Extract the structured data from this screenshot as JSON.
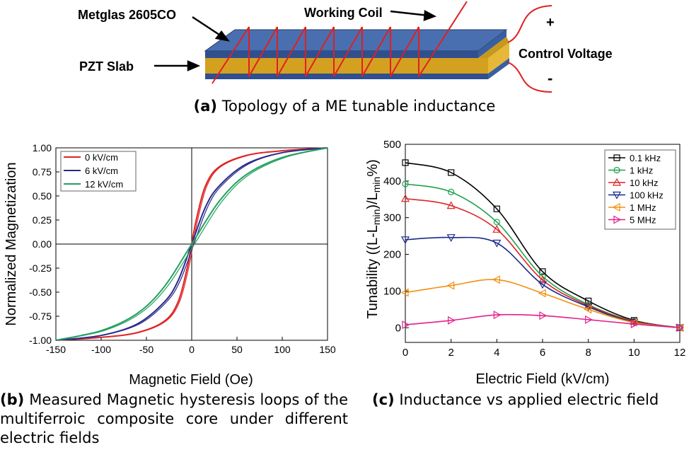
{
  "figure_a": {
    "labels": {
      "metglas": "Metglas 2605CO",
      "coil": "Working Coil",
      "pzt": "PZT Slab",
      "control": "Control Voltage",
      "plus": "+",
      "minus": "-"
    },
    "caption_tag": "(a)",
    "caption_text": "Topology of a ME tunable inductance",
    "colors": {
      "metglas": "#2f4f8f",
      "pzt": "#d4a020",
      "coil": "#e02020"
    }
  },
  "figure_b": {
    "caption_tag": "(b)",
    "caption_text_line1": "Measured Magnetic hysteresis loops of the",
    "caption_text_line2": "multiferroic composite core under different",
    "caption_text_line3": "electric fields"
  },
  "figure_c": {
    "caption_tag": "(c)",
    "caption_text": "Inductance vs applied electric field"
  },
  "chart_data": [
    {
      "type": "line",
      "xlabel": "Magnetic Field (Oe)",
      "ylabel": "Normalized Magnetization",
      "xlim": [
        -150,
        150
      ],
      "ylim": [
        -1.0,
        1.0
      ],
      "xticks": [
        "-150",
        "-100",
        "-50",
        "0",
        "50",
        "100",
        "150"
      ],
      "yticks": [
        "1.00",
        "0.75",
        "0.50",
        "0.25",
        "0.00",
        "-0.25",
        "-0.50",
        "-0.75",
        "-1.00"
      ],
      "legend_position": "top-left",
      "series": [
        {
          "name": "0 kV/cm",
          "color": "#e02424",
          "x": [
            -150,
            -100,
            -60,
            -30,
            -15,
            -5,
            0,
            5,
            15,
            30,
            60,
            100,
            150
          ],
          "y": [
            -1.0,
            -0.97,
            -0.92,
            -0.8,
            -0.6,
            -0.25,
            0.0,
            0.25,
            0.6,
            0.8,
            0.92,
            0.97,
            1.0
          ]
        },
        {
          "name": "6 kV/cm",
          "color": "#2a2a8c",
          "x": [
            -150,
            -100,
            -60,
            -30,
            -15,
            0,
            15,
            30,
            60,
            100,
            150
          ],
          "y": [
            -1.0,
            -0.95,
            -0.83,
            -0.6,
            -0.38,
            0.0,
            0.38,
            0.6,
            0.83,
            0.95,
            1.0
          ]
        },
        {
          "name": "12 kV/cm",
          "color": "#22a060",
          "x": [
            -150,
            -100,
            -60,
            -30,
            0,
            30,
            60,
            100,
            150
          ],
          "y": [
            -1.0,
            -0.9,
            -0.72,
            -0.44,
            0.0,
            0.44,
            0.72,
            0.9,
            1.0
          ]
        }
      ]
    },
    {
      "type": "line",
      "xlabel": "Electric Field (kV/cm)",
      "ylabel": "Tunability ((L-L",
      "ylabel_sub1": "min",
      "ylabel_mid": ")/L",
      "ylabel_sub2": "min",
      "ylabel_end": "%)",
      "xlim": [
        0,
        12
      ],
      "ylim": [
        -40,
        500
      ],
      "xticks": [
        "0",
        "2",
        "4",
        "6",
        "8",
        "10",
        "12"
      ],
      "yticks": [
        "500",
        "400",
        "300",
        "200",
        "100",
        "0"
      ],
      "legend_position": "top-right",
      "x": [
        0,
        2,
        4,
        6,
        8,
        10,
        12
      ],
      "series": [
        {
          "name": "0.1 kHz",
          "color": "#000000",
          "marker": "square",
          "values": [
            450,
            423,
            324,
            153,
            73,
            20,
            0
          ]
        },
        {
          "name": "1 kHz",
          "color": "#22a050",
          "marker": "circle",
          "values": [
            392,
            370,
            288,
            140,
            63,
            18,
            0
          ]
        },
        {
          "name": "10 kHz",
          "color": "#e02424",
          "marker": "triangle-up",
          "values": [
            352,
            333,
            268,
            130,
            60,
            17,
            0
          ]
        },
        {
          "name": "100 kHz",
          "color": "#1a2a8c",
          "marker": "triangle-down",
          "values": [
            240,
            246,
            231,
            118,
            57,
            15,
            0
          ]
        },
        {
          "name": "1 MHz",
          "color": "#f29010",
          "marker": "triangle-left",
          "values": [
            96,
            115,
            131,
            94,
            50,
            14,
            0
          ]
        },
        {
          "name": "5 MHz",
          "color": "#e0208c",
          "marker": "triangle-right",
          "values": [
            8,
            20,
            35,
            33,
            22,
            10,
            0
          ]
        }
      ]
    }
  ]
}
